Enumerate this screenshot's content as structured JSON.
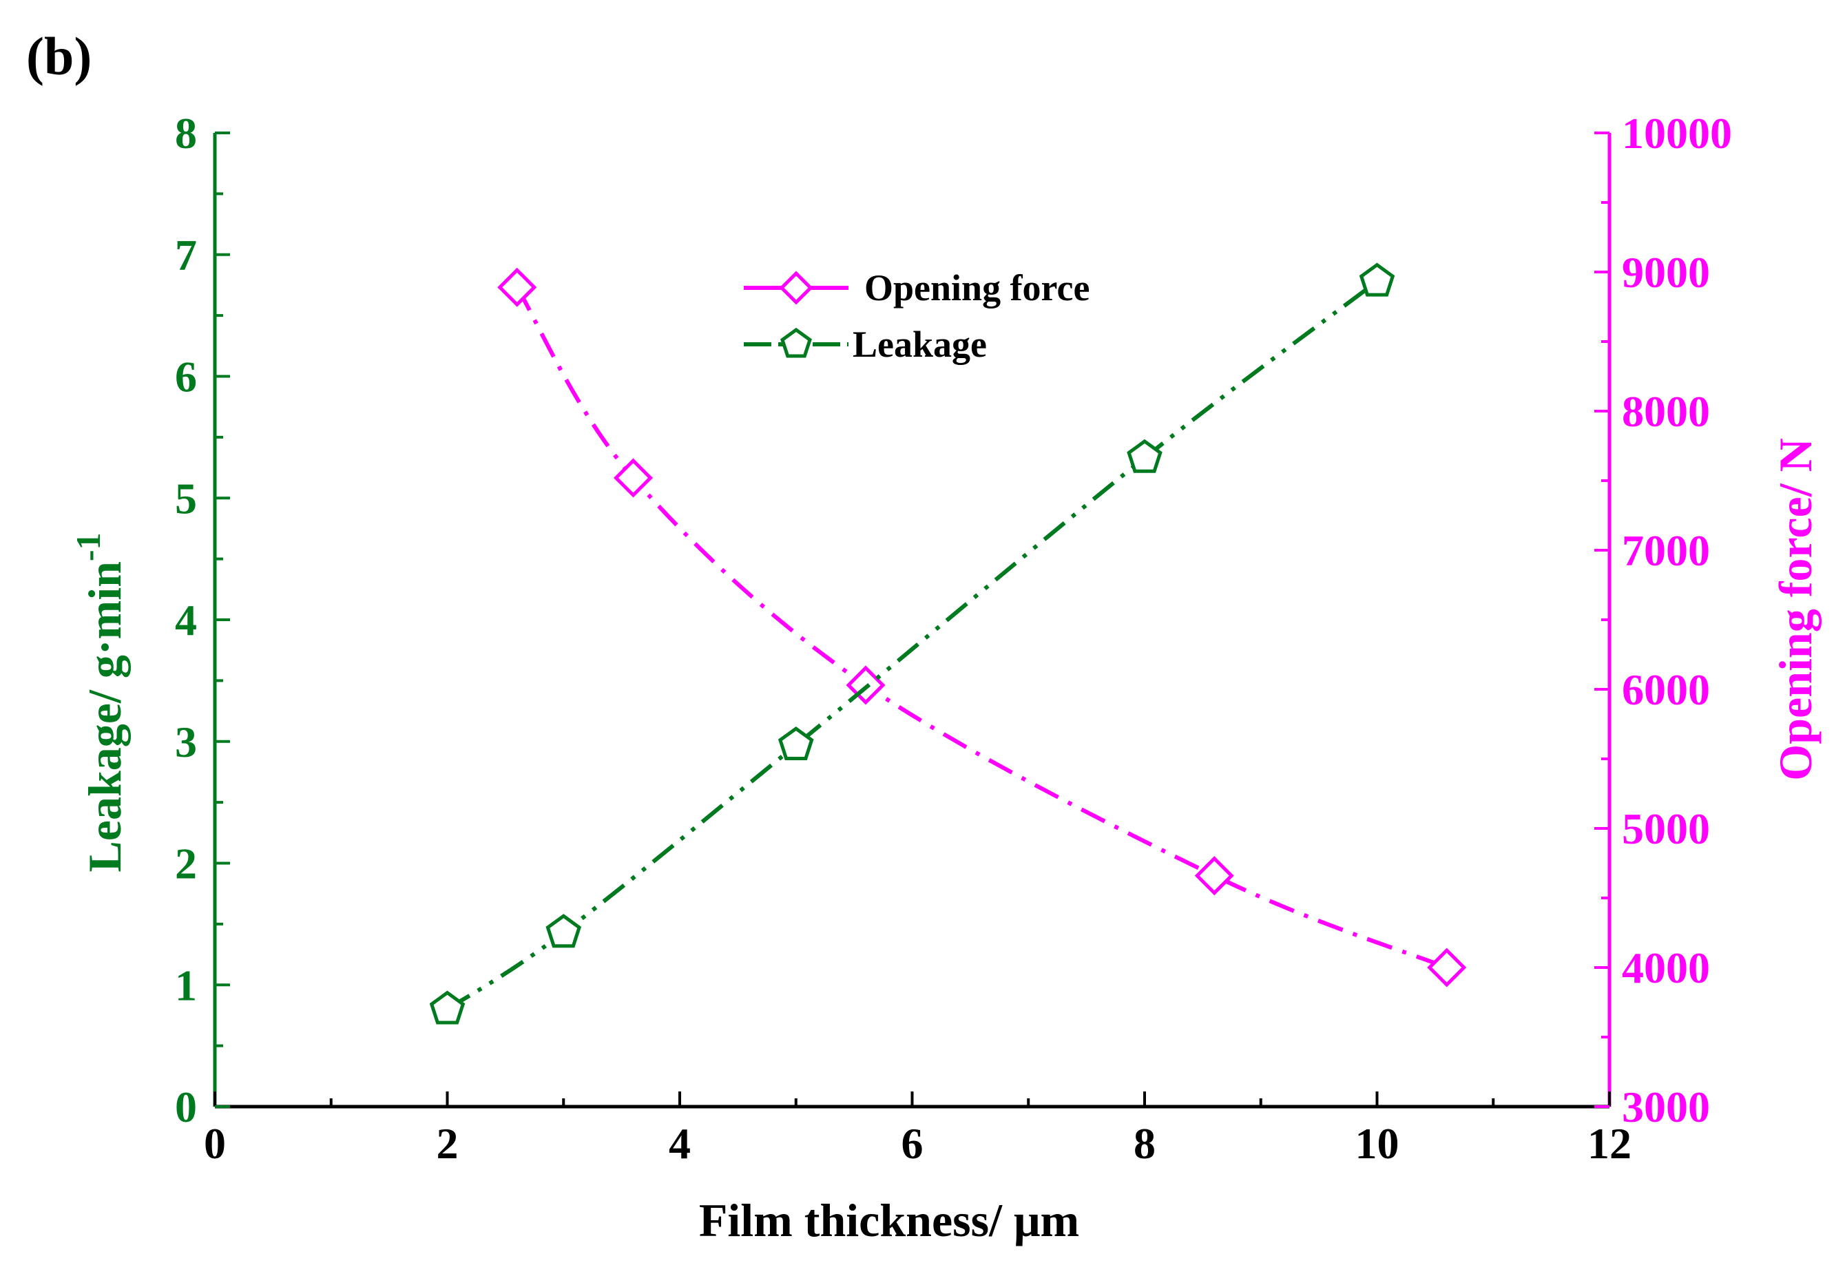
{
  "panel_label": "(b)",
  "colors": {
    "left_axis": "#007a1f",
    "right_axis": "#ff00ff",
    "frame": "#000000",
    "leakage_series": "#007a1f",
    "opening_series": "#ff00ff"
  },
  "chart_data": {
    "type": "line",
    "title": "",
    "xlabel": "Film thickness/ μm",
    "ylabel_left": "Leakage/ g·min",
    "ylabel_left_superscript": "-1",
    "ylabel_right": "Opening force/ N",
    "xlim": [
      0,
      12
    ],
    "ylim_left": [
      0,
      8
    ],
    "ylim_right": [
      3000,
      10000
    ],
    "x_ticks": [
      "0",
      "2",
      "4",
      "6",
      "8",
      "10",
      "12"
    ],
    "y_left_ticks": [
      "0",
      "1",
      "2",
      "3",
      "4",
      "5",
      "6",
      "7",
      "8"
    ],
    "y_right_ticks": [
      "3000",
      "4000",
      "5000",
      "6000",
      "7000",
      "8000",
      "9000",
      "10000"
    ],
    "grid": false,
    "legend_position": "top-center",
    "series": [
      {
        "name": "Opening force",
        "axis": "right",
        "marker": "diamond",
        "line_style": "dash-dot",
        "points": [
          {
            "x": 2.6,
            "y": 8890
          },
          {
            "x": 3.6,
            "y": 7520
          },
          {
            "x": 5.6,
            "y": 6030
          },
          {
            "x": 8.6,
            "y": 4660
          },
          {
            "x": 10.6,
            "y": 4000
          }
        ]
      },
      {
        "name": "Leakage",
        "axis": "left",
        "marker": "pentagon",
        "line_style": "dash-dot-dot",
        "points": [
          {
            "x": 2,
            "y": 0.8
          },
          {
            "x": 3,
            "y": 1.43
          },
          {
            "x": 5,
            "y": 2.97
          },
          {
            "x": 8,
            "y": 5.33
          },
          {
            "x": 10,
            "y": 6.78
          }
        ]
      }
    ]
  }
}
